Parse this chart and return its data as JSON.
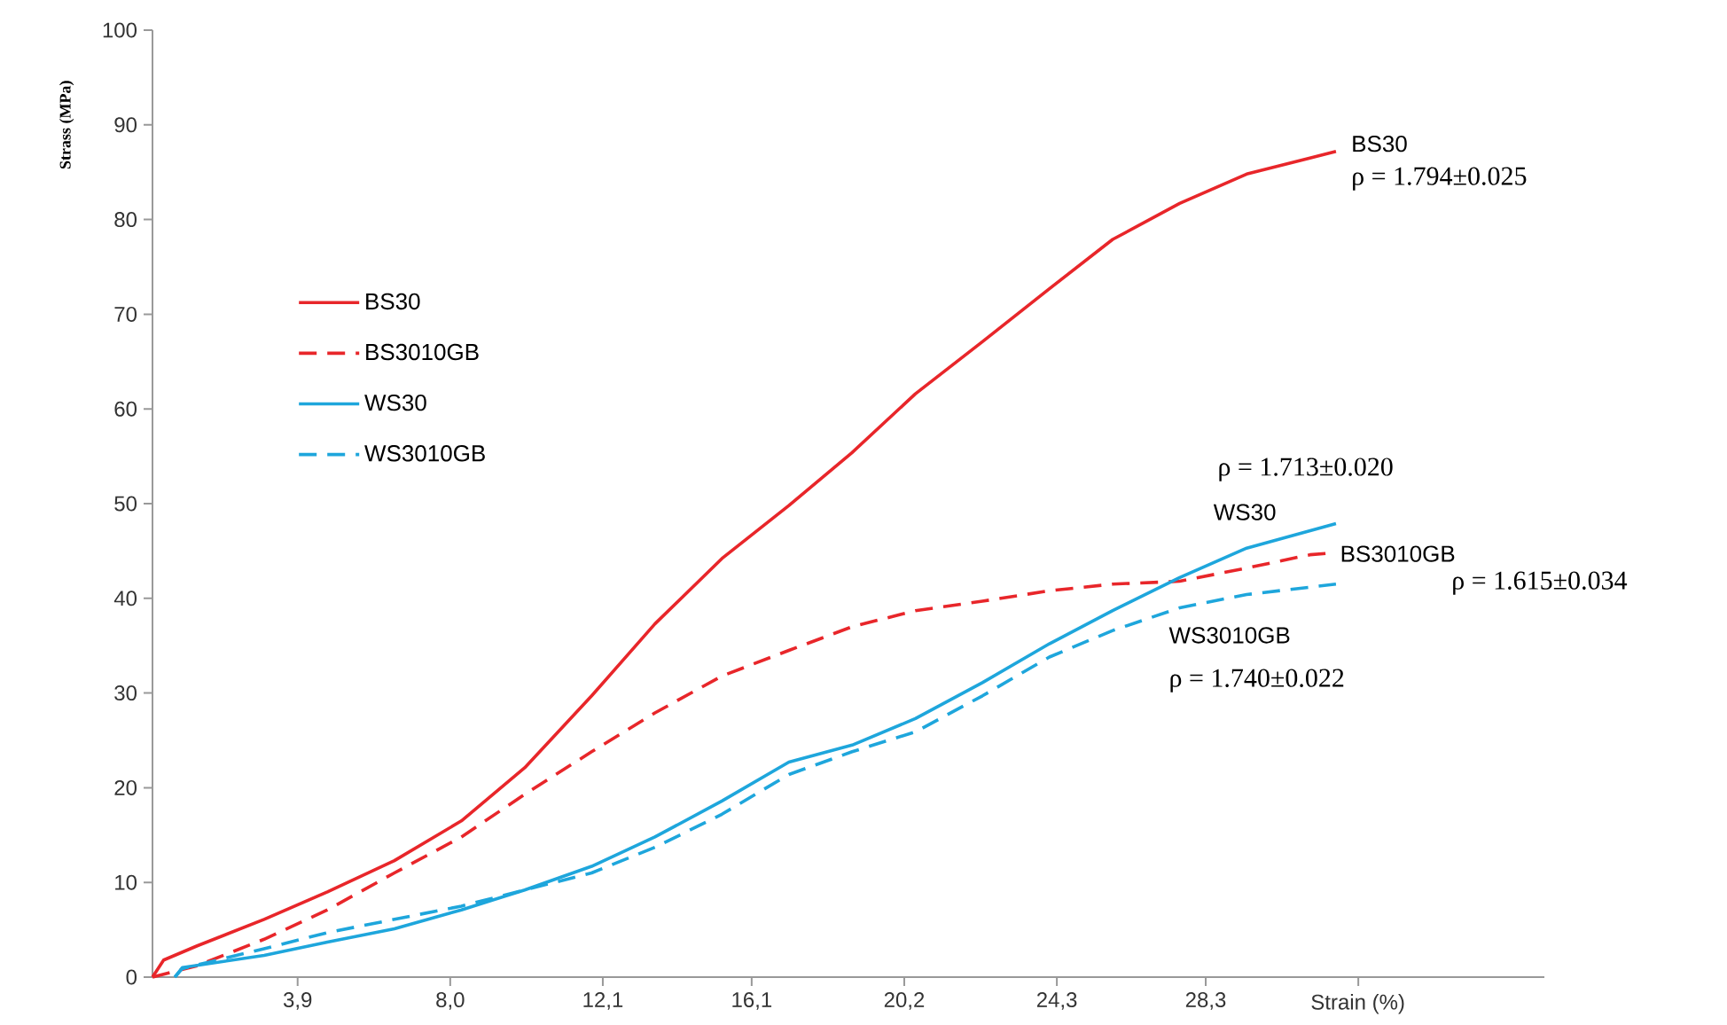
{
  "chart_data": {
    "type": "line",
    "xlabel": "Strain (%)",
    "ylabel": "Strass (MPa)",
    "xlim": [
      0,
      37.4
    ],
    "ylim": [
      0,
      100
    ],
    "xticks": [
      {
        "value": 3.9,
        "label": "3,9"
      },
      {
        "value": 8.0,
        "label": "8,0"
      },
      {
        "value": 12.1,
        "label": "12,1"
      },
      {
        "value": 16.1,
        "label": "16,1"
      },
      {
        "value": 20.2,
        "label": "20,2"
      },
      {
        "value": 24.3,
        "label": "24,3"
      },
      {
        "value": 28.3,
        "label": "28,3"
      },
      {
        "value": 32.4,
        "label": null
      }
    ],
    "yticks": [
      0,
      10,
      20,
      30,
      40,
      50,
      60,
      70,
      80,
      90,
      100
    ],
    "grid": false,
    "legend": "top left",
    "series": [
      {
        "name": "BS30",
        "color": "#e8262a",
        "line_style": "solid",
        "x": [
          0,
          0.3,
          1.2,
          3.0,
          4.7,
          6.5,
          8.3,
          10.0,
          11.8,
          13.5,
          15.3,
          17.1,
          18.8,
          20.5,
          22.3,
          24.1,
          25.8,
          27.6,
          29.4,
          31.1,
          31.8
        ],
        "values": [
          0,
          1.8,
          3.3,
          6.1,
          9.0,
          12.3,
          16.5,
          22.1,
          29.7,
          37.3,
          44.2,
          49.8,
          55.4,
          61.6,
          67.1,
          72.7,
          77.9,
          81.7,
          84.8,
          86.5,
          87.2
        ]
      },
      {
        "name": "BS3010GB",
        "color": "#e8262a",
        "line_style": "dashed",
        "x": [
          0,
          1.2,
          3.0,
          4.7,
          6.5,
          8.3,
          10.0,
          11.8,
          13.5,
          15.3,
          17.1,
          18.8,
          20.5,
          22.3,
          24.1,
          25.8,
          27.6,
          29.4,
          31.1,
          31.7
        ],
        "values": [
          0,
          1.2,
          4.0,
          7.1,
          11.0,
          14.8,
          19.3,
          23.8,
          27.9,
          31.8,
          34.5,
          37.0,
          38.7,
          39.7,
          40.8,
          41.5,
          41.8,
          43.2,
          44.6,
          44.8
        ]
      },
      {
        "name": "WS30",
        "color": "#1ea6dc",
        "line_style": "solid",
        "x": [
          0.6,
          0.8,
          3.0,
          4.7,
          6.5,
          8.3,
          10.0,
          11.8,
          13.5,
          15.3,
          17.1,
          18.8,
          20.5,
          22.3,
          24.1,
          25.8,
          27.6,
          29.4,
          31.8
        ],
        "values": [
          0,
          1.0,
          2.3,
          3.7,
          5.1,
          7.1,
          9.2,
          11.7,
          14.8,
          18.6,
          22.7,
          24.5,
          27.3,
          31.1,
          35.2,
          38.7,
          42.2,
          45.3,
          47.9
        ]
      },
      {
        "name": "WS3010GB",
        "color": "#1ea6dc",
        "line_style": "dashed",
        "x": [
          0.6,
          0.8,
          3.0,
          4.7,
          6.5,
          8.3,
          10.0,
          11.8,
          13.5,
          15.3,
          17.1,
          18.8,
          20.5,
          22.3,
          24.1,
          25.8,
          27.6,
          29.4,
          31.8
        ],
        "values": [
          0,
          0.9,
          3.0,
          4.7,
          6.1,
          7.5,
          9.2,
          11.0,
          13.7,
          17.2,
          21.4,
          23.8,
          25.9,
          29.7,
          33.8,
          36.6,
          39.0,
          40.4,
          41.5
        ]
      }
    ],
    "annotations": [
      "BS30",
      "ρ = 1.794±0.025",
      "WS30",
      "ρ = 1.713±0.020",
      "BS3010GB",
      "ρ = 1.615±0.034",
      "WS3010GB",
      "ρ = 1.740±0.022"
    ]
  }
}
